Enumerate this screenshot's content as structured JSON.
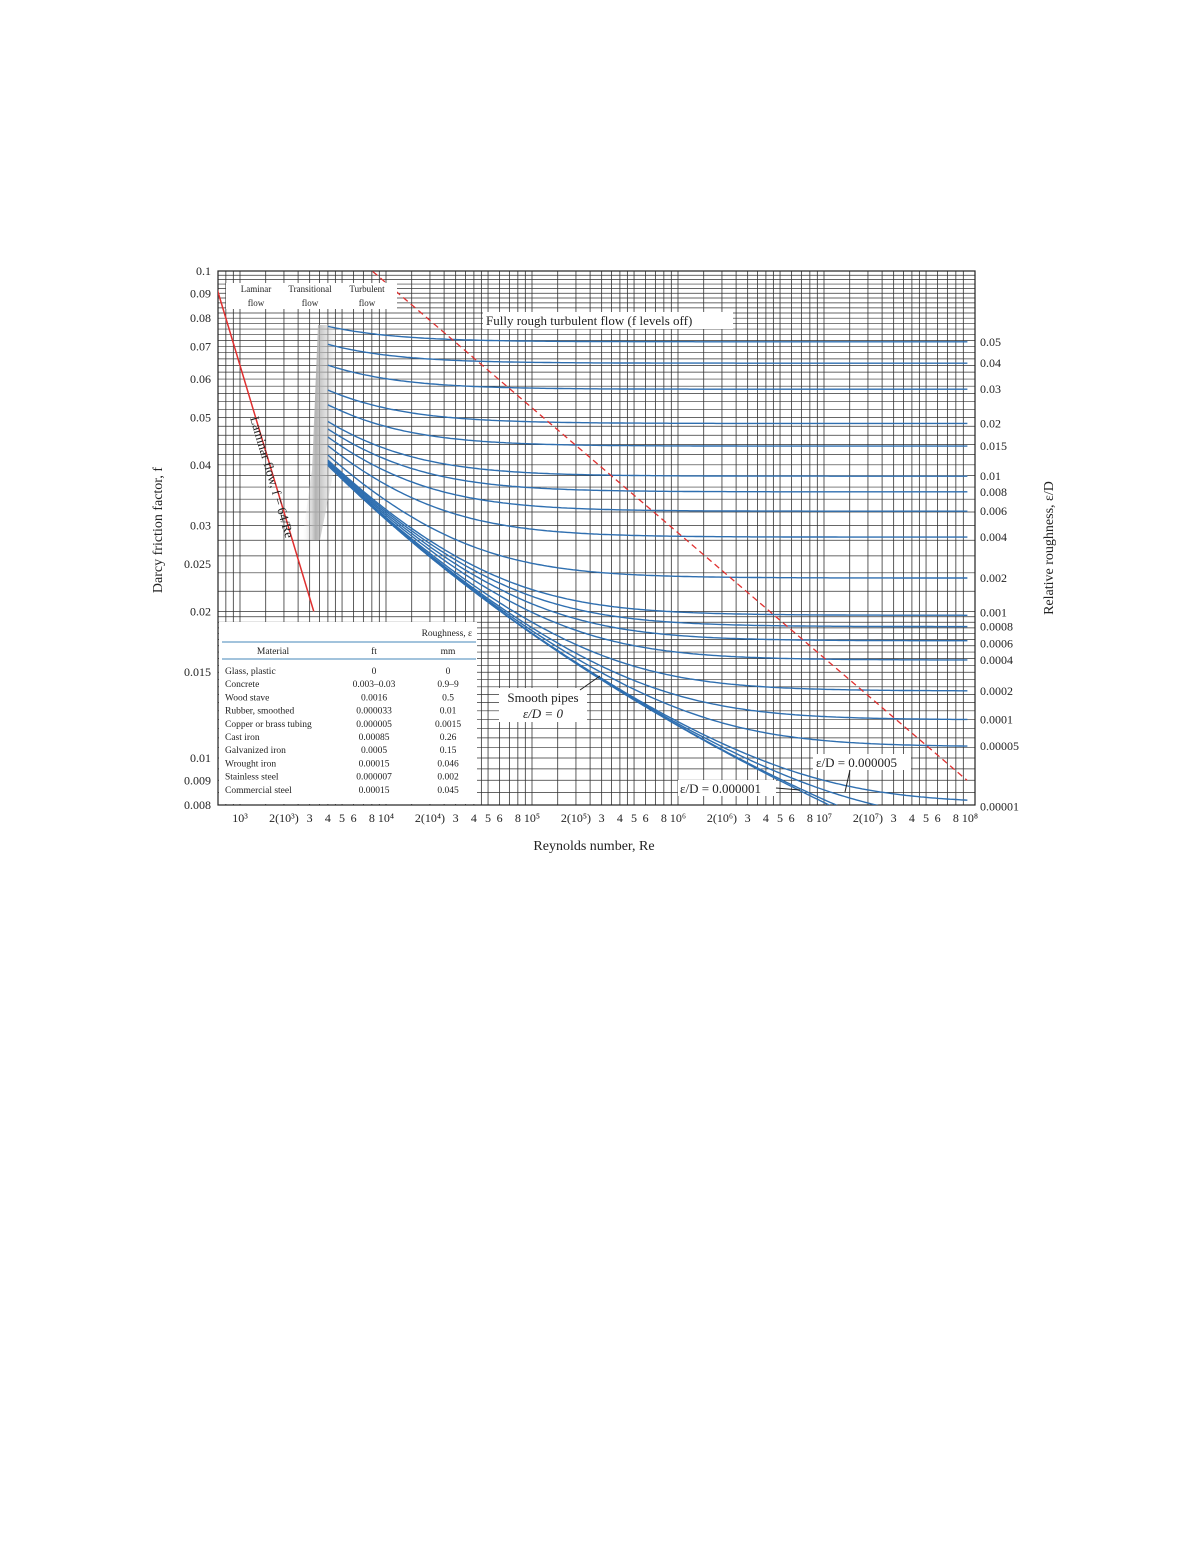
{
  "chart_data": {
    "type": "line",
    "xlabel": "Reynolds number, Re",
    "ylabel": "Darcy friction factor, f",
    "y2label": "Relative roughness, ε/D",
    "xscale": "log",
    "yscale": "log",
    "xlim": [
      700,
      100000000
    ],
    "ylim": [
      0.008,
      0.1
    ],
    "grid": true,
    "x_tick_labels": [
      {
        "v": 1000,
        "t": "10³"
      },
      {
        "v": 2000,
        "t": "2(10³)"
      },
      {
        "v": 3000,
        "t": "3"
      },
      {
        "v": 4000,
        "t": "4"
      },
      {
        "v": 5000,
        "t": "5"
      },
      {
        "v": 6000,
        "t": "6"
      },
      {
        "v": 8000,
        "t": "8"
      },
      {
        "v": 10000,
        "t": "10⁴"
      },
      {
        "v": 20000,
        "t": "2(10⁴)"
      },
      {
        "v": 30000,
        "t": "3"
      },
      {
        "v": 40000,
        "t": "4"
      },
      {
        "v": 50000,
        "t": "5"
      },
      {
        "v": 60000,
        "t": "6"
      },
      {
        "v": 80000,
        "t": "8"
      },
      {
        "v": 100000,
        "t": "10⁵"
      },
      {
        "v": 200000,
        "t": "2(10⁵)"
      },
      {
        "v": 300000,
        "t": "3"
      },
      {
        "v": 400000,
        "t": "4"
      },
      {
        "v": 500000,
        "t": "5"
      },
      {
        "v": 600000,
        "t": "6"
      },
      {
        "v": 800000,
        "t": "8"
      },
      {
        "v": 1000000,
        "t": "10⁶"
      },
      {
        "v": 2000000,
        "t": "2(10⁶)"
      },
      {
        "v": 3000000,
        "t": "3"
      },
      {
        "v": 4000000,
        "t": "4"
      },
      {
        "v": 5000000,
        "t": "5"
      },
      {
        "v": 6000000,
        "t": "6"
      },
      {
        "v": 8000000,
        "t": "8"
      },
      {
        "v": 10000000,
        "t": "10⁷"
      },
      {
        "v": 20000000,
        "t": "2(10⁷)"
      },
      {
        "v": 30000000,
        "t": "3"
      },
      {
        "v": 40000000,
        "t": "4"
      },
      {
        "v": 50000000,
        "t": "5"
      },
      {
        "v": 60000000,
        "t": "6"
      },
      {
        "v": 80000000,
        "t": "8"
      },
      {
        "v": 100000000,
        "t": "10⁸"
      }
    ],
    "y_tick_labels": [
      "0.1",
      "0.09",
      "0.08",
      "0.07",
      "0.06",
      "0.05",
      "0.04",
      "0.03",
      "0.025",
      "0.02",
      "0.015",
      "0.01",
      "0.009",
      "0.008"
    ],
    "relative_roughness_curves": [
      "0.05",
      "0.04",
      "0.03",
      "0.02",
      "0.015",
      "0.01",
      "0.008",
      "0.006",
      "0.004",
      "0.002",
      "0.001",
      "0.0008",
      "0.0006",
      "0.0004",
      "0.0002",
      "0.0001",
      "0.00005",
      "0.00001",
      "0.000005",
      "0.000001",
      "0"
    ],
    "right_axis_labels": [
      "0.05",
      "0.04",
      "0.03",
      "0.02",
      "0.015",
      "0.01",
      "0.008",
      "0.006",
      "0.004",
      "0.002",
      "0.001",
      "0.0008",
      "0.0006",
      "0.0004",
      "0.0002",
      "0.0001",
      "0.00005",
      "0.00001"
    ],
    "laminar_line": {
      "formula": "f = 64/Re",
      "label": "Laminar flow, f = 64/Re"
    },
    "fully_rough_boundary": {
      "re": [
        7200,
        100000000
      ],
      "f": [
        0.1,
        0.009
      ]
    },
    "colors": {
      "curves": "#2f6fb0",
      "laminar": "#e03030",
      "boundary": "#e03030",
      "grid": "#222222"
    },
    "annotations": {
      "laminar_region": [
        "Laminar",
        "flow"
      ],
      "transitional_region": [
        "Transitional",
        "flow"
      ],
      "turbulent_region": [
        "Turbulent",
        "flow"
      ],
      "fully_rough": "Fully rough turbulent flow (f levels off)",
      "smooth": [
        "Smooth pipes",
        "ε/D = 0"
      ],
      "ed5": "ε/D = 0.000005",
      "ed1": "ε/D = 0.000001"
    },
    "table": {
      "group_header": "Roughness, ε",
      "headers": [
        "Material",
        "ft",
        "mm"
      ],
      "rows": [
        [
          "Glass, plastic",
          "0",
          "0"
        ],
        [
          "Concrete",
          "0.003–0.03",
          "0.9–9"
        ],
        [
          "Wood stave",
          "0.0016",
          "0.5"
        ],
        [
          "Rubber, smoothed",
          "0.000033",
          "0.01"
        ],
        [
          "Copper or brass tubing",
          "0.000005",
          "0.0015"
        ],
        [
          "Cast iron",
          "0.00085",
          "0.26"
        ],
        [
          "Galvanized iron",
          "0.0005",
          "0.15"
        ],
        [
          "Wrought iron",
          "0.00015",
          "0.046"
        ],
        [
          "Stainless steel",
          "0.000007",
          "0.002"
        ],
        [
          "Commercial steel",
          "0.00015",
          "0.045"
        ]
      ]
    }
  }
}
